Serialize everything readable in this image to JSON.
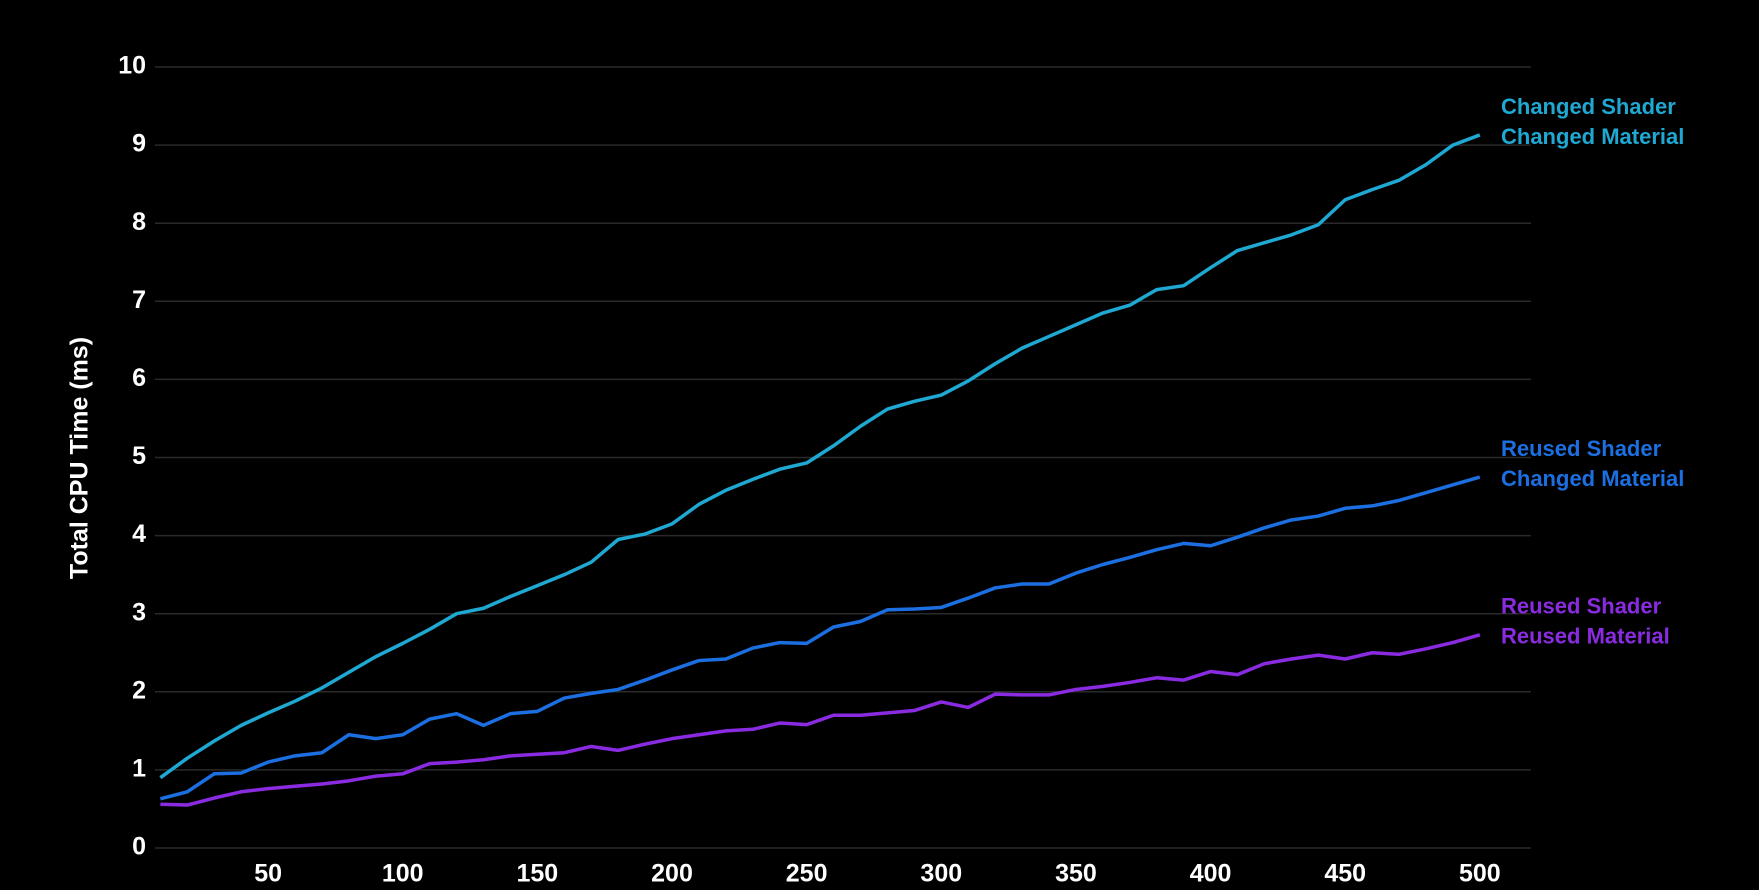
{
  "chart_data": {
    "type": "line",
    "ylabel": "Total CPU Time (ms)",
    "x": [
      10,
      20,
      30,
      40,
      50,
      60,
      70,
      80,
      90,
      100,
      110,
      120,
      130,
      140,
      150,
      160,
      170,
      180,
      190,
      200,
      210,
      220,
      230,
      240,
      250,
      260,
      270,
      280,
      290,
      300,
      310,
      320,
      330,
      340,
      350,
      360,
      370,
      380,
      390,
      400,
      410,
      420,
      430,
      440,
      450,
      460,
      470,
      480,
      490,
      500
    ],
    "series": [
      {
        "name": [
          "Changed Shader",
          "Changed Material"
        ],
        "color": "#1fa8d2",
        "values": [
          0.9,
          1.15,
          1.37,
          1.57,
          1.73,
          1.88,
          2.05,
          2.25,
          2.45,
          2.62,
          2.8,
          3.0,
          3.07,
          3.22,
          3.36,
          3.5,
          3.66,
          3.95,
          4.02,
          4.15,
          4.4,
          4.58,
          4.72,
          4.85,
          4.93,
          5.15,
          5.4,
          5.62,
          5.72,
          5.8,
          5.98,
          6.2,
          6.4,
          6.55,
          6.7,
          6.85,
          6.95,
          7.15,
          7.2,
          7.43,
          7.65,
          7.75,
          7.85,
          7.98,
          8.3,
          8.43,
          8.55,
          8.75,
          9.0,
          9.13
        ]
      },
      {
        "name": [
          "Reused Shader",
          "Changed Material"
        ],
        "color": "#1b6fe0",
        "values": [
          0.63,
          0.72,
          0.95,
          0.96,
          1.1,
          1.18,
          1.22,
          1.45,
          1.4,
          1.45,
          1.65,
          1.72,
          1.57,
          1.72,
          1.75,
          1.92,
          1.98,
          2.03,
          2.15,
          2.28,
          2.4,
          2.42,
          2.56,
          2.63,
          2.62,
          2.83,
          2.9,
          3.05,
          3.06,
          3.08,
          3.2,
          3.33,
          3.38,
          3.38,
          3.52,
          3.63,
          3.72,
          3.82,
          3.9,
          3.87,
          3.98,
          4.1,
          4.2,
          4.25,
          4.35,
          4.38,
          4.45,
          4.55,
          4.65,
          4.75
        ]
      },
      {
        "name": [
          "Reused Shader",
          "Reused Material"
        ],
        "color": "#8a2be2",
        "values": [
          0.56,
          0.55,
          0.64,
          0.72,
          0.76,
          0.79,
          0.82,
          0.86,
          0.92,
          0.95,
          1.08,
          1.1,
          1.13,
          1.18,
          1.2,
          1.22,
          1.3,
          1.25,
          1.33,
          1.4,
          1.45,
          1.5,
          1.52,
          1.6,
          1.58,
          1.7,
          1.7,
          1.73,
          1.76,
          1.87,
          1.8,
          1.97,
          1.96,
          1.96,
          2.03,
          2.07,
          2.12,
          2.18,
          2.15,
          2.26,
          2.22,
          2.36,
          2.42,
          2.47,
          2.42,
          2.5,
          2.48,
          2.55,
          2.63,
          2.73
        ]
      }
    ],
    "xlim": [
      8,
      519
    ],
    "xticks": [
      50,
      100,
      150,
      200,
      250,
      300,
      350,
      400,
      450,
      500
    ],
    "ylim": [
      0,
      10
    ],
    "yticks": [
      0,
      1,
      2,
      3,
      4,
      5,
      6,
      7,
      8,
      9,
      10
    ],
    "grid": true
  }
}
